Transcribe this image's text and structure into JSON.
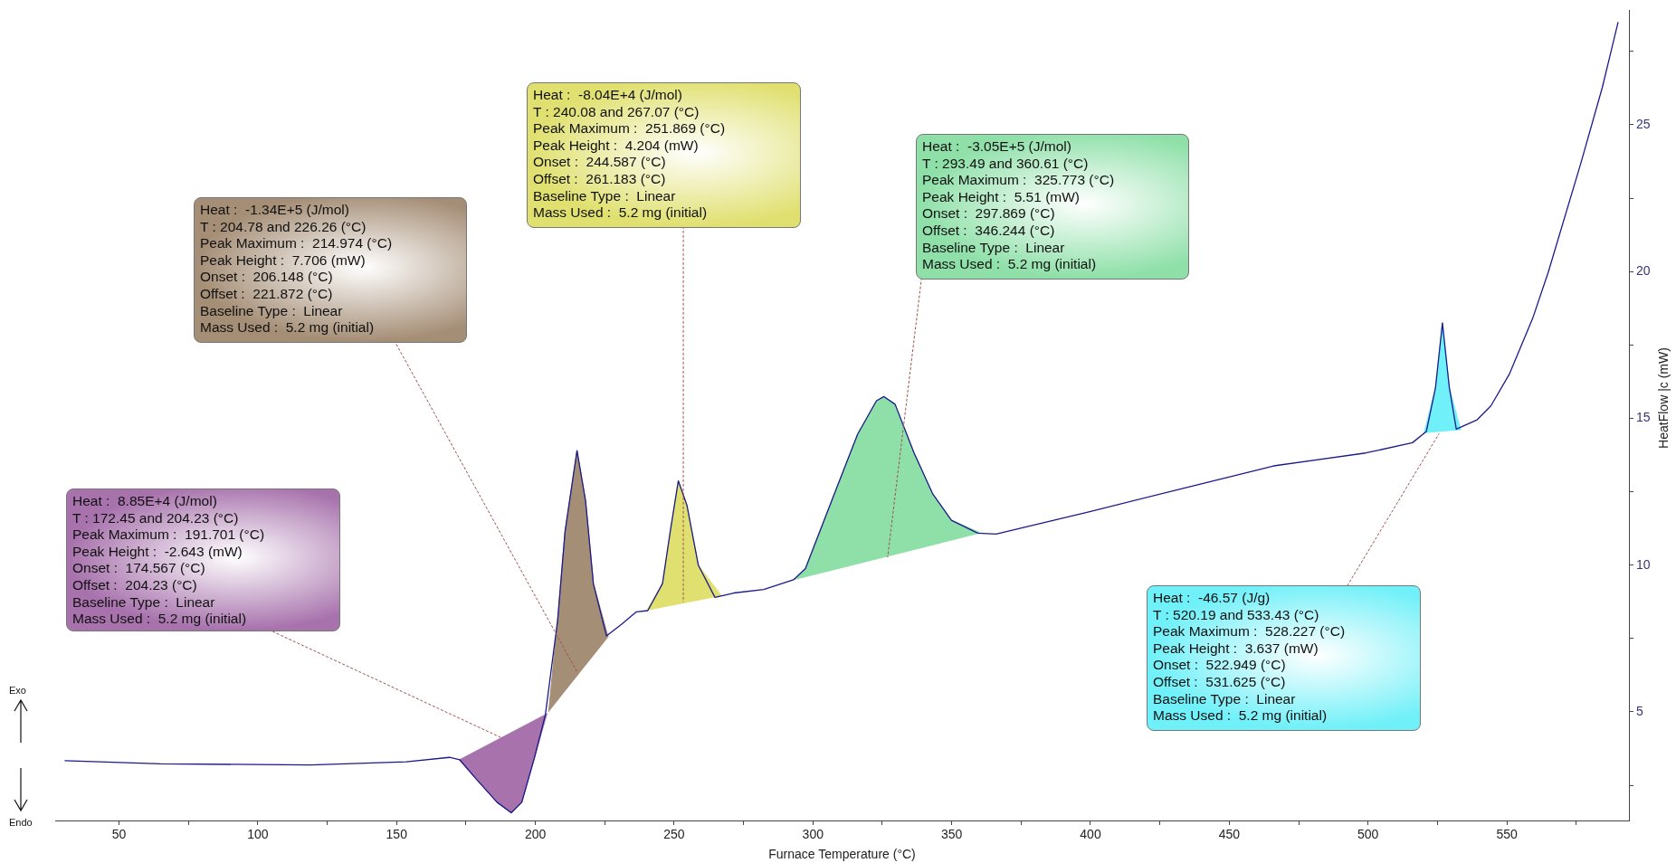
{
  "chart_data": {
    "type": "line",
    "xlabel": "Furnace Temperature (°C)",
    "ylabel": "HeatFlow |c (mW)",
    "xlim": [
      27,
      594
    ],
    "ylim": [
      1.3,
      28.9
    ],
    "xticks": [
      50,
      {
        "value": 75,
        "label": null
      },
      100,
      {
        "value": 125,
        "label": null
      },
      150,
      {
        "value": 175,
        "label": null
      },
      200,
      {
        "value": 225,
        "label": null
      },
      250,
      {
        "value": 275,
        "label": null
      },
      300,
      {
        "value": 325,
        "label": null
      },
      350,
      {
        "value": 375,
        "label": null
      },
      400,
      {
        "value": 425,
        "label": null
      },
      450,
      {
        "value": 475,
        "label": null
      },
      500,
      {
        "value": 525,
        "label": null
      },
      550,
      {
        "value": 575,
        "label": null
      }
    ],
    "yticks": [
      {
        "value": 2.5,
        "label": null
      },
      5,
      {
        "value": 7.5,
        "label": null
      },
      10,
      {
        "value": 12.5,
        "label": null
      },
      15,
      {
        "value": 17.5,
        "label": null
      },
      20,
      {
        "value": 22.5,
        "label": null
      },
      25,
      {
        "value": 27.5,
        "label": null
      }
    ],
    "grid": false,
    "legend": false,
    "marker": "none",
    "series": [
      {
        "color": "#1a1a8c",
        "x": [
          30.4,
          65,
          119,
          153.5,
          169,
          172.8,
          178.6,
          186.2,
          191.3,
          195.1,
          199.7,
          203.6,
          208.0,
          210.7,
          215.0,
          218.1,
          220.9,
          225.6,
          231,
          236.4,
          240.5,
          245.8,
          248.6,
          251.5,
          254.6,
          258.7,
          264.7,
          271.5,
          282.3,
          293.0,
          297.3,
          306.7,
          316.1,
          322.9,
          325.6,
          329.6,
          336.4,
          343.2,
          349.9,
          359.4,
          366,
          399.4,
          432.7,
          466,
          499.2,
          516,
          521,
          524.3,
          526.8,
          529.3,
          531.8,
          539.3,
          544.3,
          551,
          559.3,
          565,
          576.7,
          584.4,
          590.1
        ],
        "values": [
          3.34,
          3.23,
          3.19,
          3.3,
          3.45,
          3.37,
          2.72,
          1.92,
          1.56,
          1.92,
          3.45,
          4.9,
          8.1,
          11.15,
          13.9,
          12.18,
          9.37,
          7.59,
          7.98,
          8.41,
          8.45,
          9.37,
          11.15,
          12.87,
          12.04,
          10.0,
          8.9,
          9.05,
          9.17,
          9.5,
          9.88,
          12.18,
          14.46,
          15.6,
          15.74,
          15.48,
          13.83,
          12.42,
          11.53,
          11.09,
          11.06,
          11.81,
          12.6,
          13.38,
          13.82,
          14.17,
          14.55,
          16.04,
          18.25,
          16.04,
          14.63,
          14.95,
          15.43,
          16.52,
          18.4,
          20,
          23.7,
          26.27,
          28.5
        ]
      },
      {
        "type": "area",
        "color": "#a873ad",
        "x": [
          172.45,
          178.6,
          186.2,
          191.3,
          195.1,
          199.7,
          204.23
        ],
        "values": [
          3.37,
          2.72,
          1.92,
          1.56,
          1.92,
          3.45,
          4.95
        ]
      },
      {
        "type": "area",
        "color": "#a58e76",
        "x": [
          204.78,
          208.0,
          210.7,
          215.0,
          218.1,
          220.9,
          226.26
        ],
        "values": [
          5.0,
          8.1,
          11.15,
          13.9,
          12.18,
          9.37,
          7.55
        ]
      },
      {
        "type": "area",
        "color": "#e0e070",
        "x": [
          240.08,
          245.8,
          248.6,
          251.5,
          254.6,
          258.7,
          267.07
        ],
        "values": [
          8.45,
          9.37,
          11.15,
          12.87,
          12.04,
          10.0,
          8.95
        ]
      },
      {
        "type": "area",
        "color": "#8ee0a8",
        "x": [
          293.49,
          297.3,
          306.7,
          316.1,
          322.9,
          325.6,
          329.6,
          336.4,
          343.2,
          349.9,
          360.61
        ],
        "values": [
          9.5,
          9.88,
          12.18,
          14.46,
          15.6,
          15.74,
          15.48,
          13.83,
          12.42,
          11.53,
          11.09
        ]
      },
      {
        "type": "area",
        "color": "#70f0f8",
        "x": [
          520.19,
          524.3,
          526.8,
          529.3,
          533.43
        ],
        "values": [
          14.5,
          16.04,
          18.25,
          16.04,
          14.6
        ]
      }
    ],
    "annotations": [
      {
        "text": "Heat :  8.85E+4 (J/mol)\nT : 172.45 and 204.23 (°C)\nPeak Maximum :  191.701 (°C)\nPeak Height :  -2.643 (mW)\nOnset :  174.567 (°C)\nOffset :  204.23 (°C)\nBaseline Type :  Linear\nMass Used :  5.2 mg (initial)",
        "x": 188.2,
        "y": 4.1
      },
      {
        "text": "Heat :  -1.34E+5 (J/mol)\nT : 204.78 and 226.26 (°C)\nPeak Maximum :  214.974 (°C)\nPeak Height :  7.706 (mW)\nOnset :  206.148 (°C)\nOffset :  221.872 (°C)\nBaseline Type :  Linear\nMass Used :  5.2 mg (initial)",
        "x": 215.1,
        "y": 6.35
      },
      {
        "text": "Heat :  -8.04E+4 (J/mol)\nT : 240.08 and 267.07 (°C)\nPeak Maximum :  251.869 (°C)\nPeak Height :  4.204 (mW)\nOnset :  244.587 (°C)\nOffset :  261.183 (°C)\nBaseline Type :  Linear\nMass Used :  5.2 mg (initial)",
        "x": 253.3,
        "y": 8.74
      },
      {
        "text": "Heat :  -3.05E+5 (J/mol)\nT : 293.49 and 360.61 (°C)\nPeak Maximum :  325.773 (°C)\nPeak Height :  5.51 (mW)\nOnset :  297.869 (°C)\nOffset :  346.244 (°C)\nBaseline Type :  Linear\nMass Used :  5.2 mg (initial)",
        "x": 326.9,
        "y": 10.26
      },
      {
        "text": "Heat :  -46.57 (J/g)\nT : 520.19 and 533.43 (°C)\nPeak Maximum :  528.227 (°C)\nPeak Height :  3.637 (mW)\nOnset :  522.949 (°C)\nOffset :  531.625 (°C)\nBaseline Type :  Linear\nMass Used :  5.2 mg (initial)",
        "x": 525.6,
        "y": 14.48
      },
      "Exo",
      "Endo"
    ]
  }
}
